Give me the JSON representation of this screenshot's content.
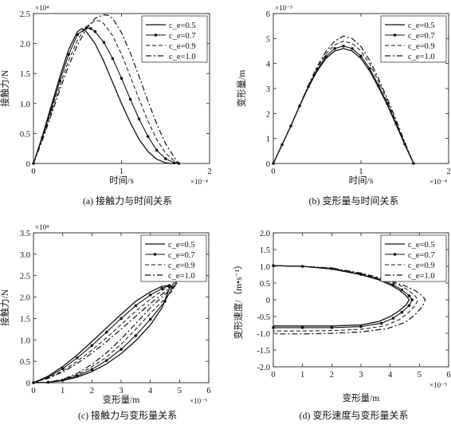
{
  "legend_labels": [
    "c_e=0.5",
    "c_e=0.7",
    "c_e=0.9",
    "c_e=1.0"
  ],
  "line_styles": [
    "solid",
    "solid-dots",
    "dashed",
    "dashdot"
  ],
  "chart_data": [
    {
      "id": "a",
      "type": "line",
      "caption": "(a) 接触力与时间关系",
      "xlabel": "时间/s",
      "ylabel": "接触力/N",
      "x_exponent": "×10⁻⁴",
      "y_exponent": "×10⁴",
      "xlim": [
        0,
        2
      ],
      "ylim": [
        0,
        2.5
      ],
      "xticks": [
        "0",
        "1",
        "2"
      ],
      "yticks": [
        "0",
        "0.5",
        "1.0",
        "1.5",
        "2.0",
        "2.5"
      ],
      "legend_position": "top-right",
      "series": [
        {
          "name": "c_e=0.5",
          "x": [
            0,
            0.1,
            0.2,
            0.3,
            0.4,
            0.5,
            0.55,
            0.6,
            0.7,
            0.8,
            0.9,
            1.0,
            1.1,
            1.2,
            1.3,
            1.4,
            1.5,
            1.56,
            1.6
          ],
          "y": [
            0,
            0.45,
            0.95,
            1.45,
            1.9,
            2.2,
            2.25,
            2.2,
            2.0,
            1.7,
            1.35,
            1.0,
            0.68,
            0.4,
            0.2,
            0.07,
            0.01,
            0.0,
            0.0
          ]
        },
        {
          "name": "c_e=0.7",
          "x": [
            0,
            0.1,
            0.2,
            0.3,
            0.4,
            0.5,
            0.6,
            0.65,
            0.7,
            0.8,
            0.9,
            1.0,
            1.1,
            1.2,
            1.3,
            1.4,
            1.5,
            1.6,
            1.65
          ],
          "y": [
            0,
            0.43,
            0.9,
            1.38,
            1.82,
            2.15,
            2.26,
            2.25,
            2.2,
            2.02,
            1.75,
            1.42,
            1.07,
            0.74,
            0.45,
            0.22,
            0.08,
            0.01,
            0.0
          ]
        },
        {
          "name": "c_e=0.9",
          "x": [
            0,
            0.1,
            0.2,
            0.3,
            0.4,
            0.5,
            0.6,
            0.7,
            0.75,
            0.8,
            0.9,
            1.0,
            1.1,
            1.2,
            1.3,
            1.4,
            1.5,
            1.6,
            1.65
          ],
          "y": [
            0,
            0.4,
            0.85,
            1.3,
            1.72,
            2.06,
            2.28,
            2.38,
            2.38,
            2.33,
            2.13,
            1.82,
            1.45,
            1.07,
            0.71,
            0.4,
            0.17,
            0.04,
            0.0
          ]
        },
        {
          "name": "c_e=1.0",
          "x": [
            0,
            0.1,
            0.2,
            0.3,
            0.4,
            0.5,
            0.6,
            0.7,
            0.8,
            0.85,
            0.9,
            1.0,
            1.1,
            1.2,
            1.3,
            1.4,
            1.5,
            1.6,
            1.65
          ],
          "y": [
            0,
            0.38,
            0.8,
            1.23,
            1.63,
            1.98,
            2.24,
            2.42,
            2.48,
            2.47,
            2.42,
            2.18,
            1.84,
            1.45,
            1.04,
            0.66,
            0.33,
            0.1,
            0.0
          ]
        }
      ]
    },
    {
      "id": "b",
      "type": "line",
      "caption": "(b) 变形量与时间关系",
      "xlabel": "时间/s",
      "ylabel": "变形量/m",
      "x_exponent": "×10⁻⁴",
      "y_exponent": "×10⁻⁵",
      "xlim": [
        0,
        2
      ],
      "ylim": [
        0,
        6
      ],
      "xticks": [
        "0",
        "1",
        "2"
      ],
      "yticks": [
        "0",
        "1",
        "2",
        "3",
        "4",
        "5",
        "6"
      ],
      "legend_position": "top-right",
      "series": [
        {
          "name": "c_e=0.5",
          "x": [
            0,
            0.1,
            0.2,
            0.3,
            0.4,
            0.5,
            0.6,
            0.7,
            0.8,
            0.9,
            1.0,
            1.1,
            1.2,
            1.3,
            1.4,
            1.5,
            1.6
          ],
          "y": [
            0,
            0.75,
            1.5,
            2.3,
            3.05,
            3.7,
            4.2,
            4.5,
            4.6,
            4.5,
            4.2,
            3.7,
            3.05,
            2.35,
            1.55,
            0.75,
            0.0
          ]
        },
        {
          "name": "c_e=0.7",
          "x": [
            0,
            0.1,
            0.2,
            0.3,
            0.4,
            0.5,
            0.6,
            0.7,
            0.8,
            0.9,
            1.0,
            1.1,
            1.2,
            1.3,
            1.4,
            1.5,
            1.6
          ],
          "y": [
            0,
            0.75,
            1.5,
            2.3,
            3.07,
            3.75,
            4.28,
            4.6,
            4.7,
            4.6,
            4.3,
            3.8,
            3.12,
            2.4,
            1.6,
            0.78,
            0.0
          ]
        },
        {
          "name": "c_e=0.9",
          "x": [
            0,
            0.1,
            0.2,
            0.3,
            0.4,
            0.5,
            0.6,
            0.7,
            0.8,
            0.9,
            1.0,
            1.1,
            1.2,
            1.3,
            1.4,
            1.5,
            1.6
          ],
          "y": [
            0,
            0.75,
            1.5,
            2.3,
            3.1,
            3.82,
            4.38,
            4.75,
            4.9,
            4.8,
            4.5,
            3.98,
            3.28,
            2.5,
            1.68,
            0.82,
            0.0
          ]
        },
        {
          "name": "c_e=1.0",
          "x": [
            0,
            0.1,
            0.2,
            0.3,
            0.4,
            0.5,
            0.6,
            0.7,
            0.8,
            0.9,
            1.0,
            1.1,
            1.2,
            1.3,
            1.4,
            1.5,
            1.6
          ],
          "y": [
            0,
            0.75,
            1.5,
            2.32,
            3.12,
            3.88,
            4.48,
            4.9,
            5.1,
            5.0,
            4.68,
            4.12,
            3.4,
            2.6,
            1.75,
            0.85,
            0.0
          ]
        }
      ]
    },
    {
      "id": "c",
      "type": "line",
      "caption": "(c) 接触力与变形量关系",
      "xlabel": "变形量/m",
      "ylabel": "接触力/N",
      "x_exponent": "×10⁻⁵",
      "y_exponent": "×10⁴",
      "xlim": [
        0,
        6
      ],
      "ylim": [
        0,
        3.5
      ],
      "xticks": [
        "0",
        "1",
        "2",
        "3",
        "4",
        "5",
        "6"
      ],
      "yticks": [
        "0",
        "0.5",
        "1.0",
        "1.5",
        "2.0",
        "2.5",
        "3.0",
        "3.5"
      ],
      "legend_position": "top-right",
      "series": [
        {
          "name": "c_e=0.5",
          "x": [
            0,
            0.5,
            1.0,
            1.5,
            2.0,
            2.5,
            3.0,
            3.5,
            4.0,
            4.4,
            4.6,
            4.65,
            4.4,
            4.0,
            3.5,
            3.0,
            2.5,
            2.0,
            1.5,
            1.0,
            0.5,
            0.0
          ],
          "y": [
            0,
            0.15,
            0.38,
            0.65,
            0.96,
            1.28,
            1.6,
            1.9,
            2.12,
            2.25,
            2.27,
            2.2,
            1.75,
            1.35,
            0.98,
            0.68,
            0.44,
            0.26,
            0.13,
            0.05,
            0.01,
            0
          ]
        },
        {
          "name": "c_e=0.7",
          "x": [
            0,
            0.5,
            1.0,
            1.5,
            2.0,
            2.5,
            3.0,
            3.5,
            4.0,
            4.4,
            4.65,
            4.75,
            4.5,
            4.0,
            3.5,
            3.0,
            2.5,
            2.0,
            1.5,
            1.0,
            0.5,
            0.0
          ],
          "y": [
            0,
            0.13,
            0.33,
            0.58,
            0.87,
            1.18,
            1.5,
            1.8,
            2.05,
            2.2,
            2.27,
            2.22,
            1.9,
            1.48,
            1.1,
            0.78,
            0.52,
            0.31,
            0.16,
            0.06,
            0.01,
            0
          ]
        },
        {
          "name": "c_e=0.9",
          "x": [
            0,
            0.5,
            1.0,
            1.5,
            2.0,
            2.5,
            3.0,
            3.5,
            4.0,
            4.5,
            4.8,
            4.9,
            4.7,
            4.0,
            3.5,
            3.0,
            2.5,
            2.0,
            1.5,
            1.0,
            0.5,
            0.0
          ],
          "y": [
            0,
            0.11,
            0.28,
            0.5,
            0.76,
            1.05,
            1.36,
            1.67,
            1.95,
            2.2,
            2.33,
            2.32,
            2.1,
            1.62,
            1.25,
            0.9,
            0.6,
            0.37,
            0.19,
            0.07,
            0.01,
            0
          ]
        },
        {
          "name": "c_e=1.0",
          "x": [
            0,
            0.5,
            1.0,
            1.5,
            2.0,
            2.5,
            3.0,
            3.5,
            4.0,
            4.5,
            5.0,
            5.1,
            4.8,
            4.0,
            3.5,
            3.0,
            2.5,
            2.0,
            1.5,
            1.0,
            0.5,
            0.0
          ],
          "y": [
            0,
            0.1,
            0.25,
            0.45,
            0.69,
            0.96,
            1.25,
            1.55,
            1.85,
            2.12,
            2.42,
            2.45,
            2.25,
            1.75,
            1.38,
            1.02,
            0.7,
            0.43,
            0.22,
            0.08,
            0.01,
            0
          ]
        }
      ]
    },
    {
      "id": "d",
      "type": "line",
      "caption": "(d) 变形速度与变形量关系",
      "xlabel": "变形量/m",
      "ylabel": "变形速度/（m•s⁻¹）",
      "x_exponent": "×10⁻⁵",
      "xlim": [
        0,
        6
      ],
      "ylim": [
        -2,
        2
      ],
      "xticks": [
        "0",
        "1",
        "2",
        "3",
        "4",
        "5",
        "6"
      ],
      "yticks": [
        "-2.0",
        "-1.5",
        "-1.0",
        "-0.5",
        "0",
        "0.5",
        "1.0",
        "1.5",
        "2.0"
      ],
      "legend_position": "top-right",
      "series": [
        {
          "name": "c_e=0.5",
          "x": [
            0,
            1.0,
            2.0,
            3.0,
            3.6,
            4.0,
            4.3,
            4.55,
            4.65,
            4.55,
            4.3,
            4.0,
            3.6,
            3.0,
            2.0,
            1.0,
            0.0
          ],
          "y": [
            1.02,
            1.0,
            0.92,
            0.75,
            0.6,
            0.45,
            0.3,
            0.12,
            0.0,
            -0.15,
            -0.33,
            -0.5,
            -0.65,
            -0.75,
            -0.78,
            -0.78,
            -0.78
          ]
        },
        {
          "name": "c_e=0.7",
          "x": [
            0,
            1.0,
            2.0,
            3.0,
            3.7,
            4.1,
            4.4,
            4.65,
            4.75,
            4.65,
            4.4,
            4.1,
            3.7,
            3.0,
            2.0,
            1.0,
            0.0
          ],
          "y": [
            1.02,
            1.0,
            0.93,
            0.76,
            0.6,
            0.45,
            0.3,
            0.12,
            0.0,
            -0.17,
            -0.37,
            -0.55,
            -0.7,
            -0.8,
            -0.83,
            -0.83,
            -0.83
          ]
        },
        {
          "name": "c_e=0.9",
          "x": [
            0,
            1.0,
            2.0,
            3.0,
            3.8,
            4.3,
            4.6,
            4.85,
            4.95,
            4.85,
            4.6,
            4.3,
            3.8,
            3.0,
            2.0,
            1.0,
            0.0
          ],
          "y": [
            1.02,
            1.0,
            0.94,
            0.78,
            0.6,
            0.44,
            0.3,
            0.12,
            0.0,
            -0.18,
            -0.4,
            -0.6,
            -0.78,
            -0.88,
            -0.92,
            -0.93,
            -0.93
          ]
        },
        {
          "name": "c_e=1.0",
          "x": [
            0,
            1.0,
            2.0,
            3.0,
            3.9,
            4.5,
            4.85,
            5.1,
            5.2,
            5.1,
            4.85,
            4.5,
            3.9,
            3.0,
            2.0,
            1.0,
            0.0
          ],
          "y": [
            1.02,
            1.0,
            0.95,
            0.8,
            0.6,
            0.42,
            0.28,
            0.12,
            0.0,
            -0.2,
            -0.45,
            -0.68,
            -0.86,
            -0.96,
            -1.0,
            -1.02,
            -1.02
          ]
        }
      ]
    }
  ]
}
